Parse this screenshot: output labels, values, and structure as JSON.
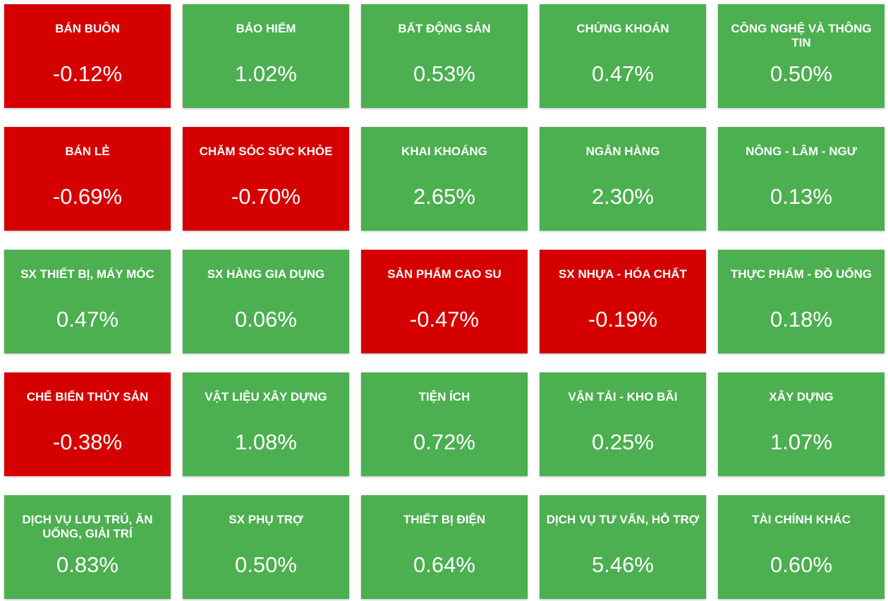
{
  "colors": {
    "up": "#4caf50",
    "down": "#d50000",
    "text": "#ffffff"
  },
  "sectors": [
    {
      "name": "BÁN BUÔN",
      "change": "-0.12%",
      "direction": "down"
    },
    {
      "name": "BẢO HIỂM",
      "change": "1.02%",
      "direction": "up"
    },
    {
      "name": "BẤT ĐỘNG SẢN",
      "change": "0.53%",
      "direction": "up"
    },
    {
      "name": "CHỨNG KHOÁN",
      "change": "0.47%",
      "direction": "up"
    },
    {
      "name": "CÔNG NGHỆ VÀ THÔNG TIN",
      "change": "0.50%",
      "direction": "up"
    },
    {
      "name": "BÁN LẺ",
      "change": "-0.69%",
      "direction": "down"
    },
    {
      "name": "CHĂM SÓC SỨC KHỎE",
      "change": "-0.70%",
      "direction": "down"
    },
    {
      "name": "KHAI KHOÁNG",
      "change": "2.65%",
      "direction": "up"
    },
    {
      "name": "NGÂN HÀNG",
      "change": "2.30%",
      "direction": "up"
    },
    {
      "name": "NÔNG - LÂM - NGƯ",
      "change": "0.13%",
      "direction": "up"
    },
    {
      "name": "SX THIẾT BỊ, MÁY MÓC",
      "change": "0.47%",
      "direction": "up"
    },
    {
      "name": "SX HÀNG GIA DỤNG",
      "change": "0.06%",
      "direction": "up"
    },
    {
      "name": "SẢN PHẨM CAO SU",
      "change": "-0.47%",
      "direction": "down"
    },
    {
      "name": "SX NHỰA - HÓA CHẤT",
      "change": "-0.19%",
      "direction": "down"
    },
    {
      "name": "THỰC PHẨM - ĐỒ UỐNG",
      "change": "0.18%",
      "direction": "up"
    },
    {
      "name": "CHẾ BIẾN THỦY SẢN",
      "change": "-0.38%",
      "direction": "down"
    },
    {
      "name": "VẬT LIỆU XÂY DỰNG",
      "change": "1.08%",
      "direction": "up"
    },
    {
      "name": "TIỆN ÍCH",
      "change": "0.72%",
      "direction": "up"
    },
    {
      "name": "VẬN TẢI - KHO BÃI",
      "change": "0.25%",
      "direction": "up"
    },
    {
      "name": "XÂY DỰNG",
      "change": "1.07%",
      "direction": "up"
    },
    {
      "name": "DỊCH VỤ LƯU TRÚ, ĂN UỐNG, GIẢI TRÍ",
      "change": "0.83%",
      "direction": "up"
    },
    {
      "name": "SX PHỤ TRỢ",
      "change": "0.50%",
      "direction": "up"
    },
    {
      "name": "THIẾT BỊ ĐIỆN",
      "change": "0.64%",
      "direction": "up"
    },
    {
      "name": "DỊCH VỤ TƯ VẤN, HỖ TRỢ",
      "change": "5.46%",
      "direction": "up"
    },
    {
      "name": "TÀI CHÍNH KHÁC",
      "change": "0.60%",
      "direction": "up"
    }
  ]
}
